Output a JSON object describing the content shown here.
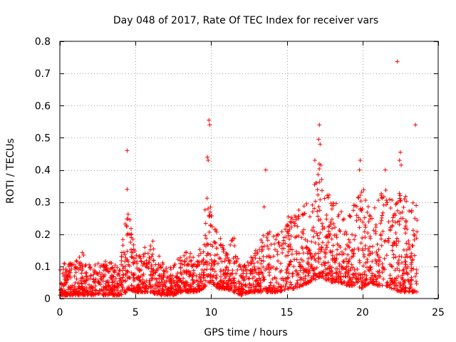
{
  "chart_data": {
    "type": "scatter",
    "title": "Day 048 of 2017, Rate Of TEC Index for receiver vars",
    "xlabel": "GPS time / hours",
    "ylabel": "ROTI / TECUs",
    "xlim": [
      0,
      25
    ],
    "ylim": [
      0,
      0.8
    ],
    "xticks": [
      0,
      5,
      10,
      15,
      20,
      25
    ],
    "yticks": [
      0,
      0.1,
      0.2,
      0.3,
      0.4,
      0.5,
      0.6,
      0.7,
      0.8
    ],
    "xtick_labels": [
      "0",
      "5",
      "10",
      "15",
      "20",
      "25"
    ],
    "ytick_labels": [
      "0",
      "0.1",
      "0.2",
      "0.3",
      "0.4",
      "0.5",
      "0.6",
      "0.7",
      "0.8"
    ],
    "grid": true,
    "marker": "+",
    "color": "#ff0000",
    "x_extent": [
      0,
      23.6
    ],
    "envelope": {
      "x": [
        0,
        0.5,
        1,
        1.5,
        2,
        2.5,
        3,
        3.5,
        4,
        4.4,
        4.5,
        5,
        5.5,
        6,
        6.5,
        7,
        7.5,
        8,
        8.5,
        9,
        9.5,
        9.8,
        10,
        10.5,
        11,
        11.5,
        12,
        12.5,
        13,
        13.5,
        14,
        14.5,
        15,
        15.5,
        16,
        16.5,
        17,
        17.2,
        17.5,
        18,
        18.5,
        19,
        19.5,
        20,
        20.5,
        21,
        21.5,
        22,
        22.5,
        23,
        23.5,
        23.6
      ],
      "upper": [
        0.1,
        0.12,
        0.11,
        0.15,
        0.12,
        0.11,
        0.12,
        0.11,
        0.1,
        0.3,
        0.28,
        0.16,
        0.15,
        0.2,
        0.14,
        0.1,
        0.1,
        0.14,
        0.15,
        0.12,
        0.2,
        0.45,
        0.3,
        0.2,
        0.15,
        0.2,
        0.1,
        0.12,
        0.16,
        0.2,
        0.22,
        0.2,
        0.25,
        0.28,
        0.3,
        0.32,
        0.38,
        0.45,
        0.35,
        0.32,
        0.28,
        0.25,
        0.3,
        0.35,
        0.28,
        0.3,
        0.38,
        0.3,
        0.34,
        0.32,
        0.3,
        0.3
      ],
      "lower": [
        0.01,
        0.01,
        0.01,
        0.01,
        0.01,
        0.01,
        0.01,
        0.01,
        0.01,
        0.02,
        0.03,
        0.02,
        0.02,
        0.02,
        0.01,
        0.01,
        0.01,
        0.02,
        0.02,
        0.02,
        0.03,
        0.05,
        0.05,
        0.03,
        0.03,
        0.02,
        0.01,
        0.02,
        0.02,
        0.02,
        0.02,
        0.02,
        0.03,
        0.03,
        0.04,
        0.05,
        0.06,
        0.07,
        0.06,
        0.05,
        0.05,
        0.04,
        0.04,
        0.03,
        0.05,
        0.04,
        0.04,
        0.03,
        0.02,
        0.02,
        0.02,
        0.02
      ]
    },
    "outliers": [
      {
        "x": 4.45,
        "y": 0.46
      },
      {
        "x": 4.45,
        "y": 0.34
      },
      {
        "x": 9.85,
        "y": 0.555
      },
      {
        "x": 9.9,
        "y": 0.54
      },
      {
        "x": 9.75,
        "y": 0.44
      },
      {
        "x": 9.8,
        "y": 0.43
      },
      {
        "x": 13.6,
        "y": 0.4
      },
      {
        "x": 13.5,
        "y": 0.285
      },
      {
        "x": 17.15,
        "y": 0.54
      },
      {
        "x": 17.1,
        "y": 0.495
      },
      {
        "x": 17.2,
        "y": 0.48
      },
      {
        "x": 17.25,
        "y": 0.415
      },
      {
        "x": 16.85,
        "y": 0.43
      },
      {
        "x": 19.85,
        "y": 0.43
      },
      {
        "x": 19.8,
        "y": 0.4
      },
      {
        "x": 21.5,
        "y": 0.4
      },
      {
        "x": 22.3,
        "y": 0.737
      },
      {
        "x": 23.5,
        "y": 0.54
      },
      {
        "x": 22.5,
        "y": 0.455
      },
      {
        "x": 22.45,
        "y": 0.43
      },
      {
        "x": 22.55,
        "y": 0.415
      }
    ]
  }
}
